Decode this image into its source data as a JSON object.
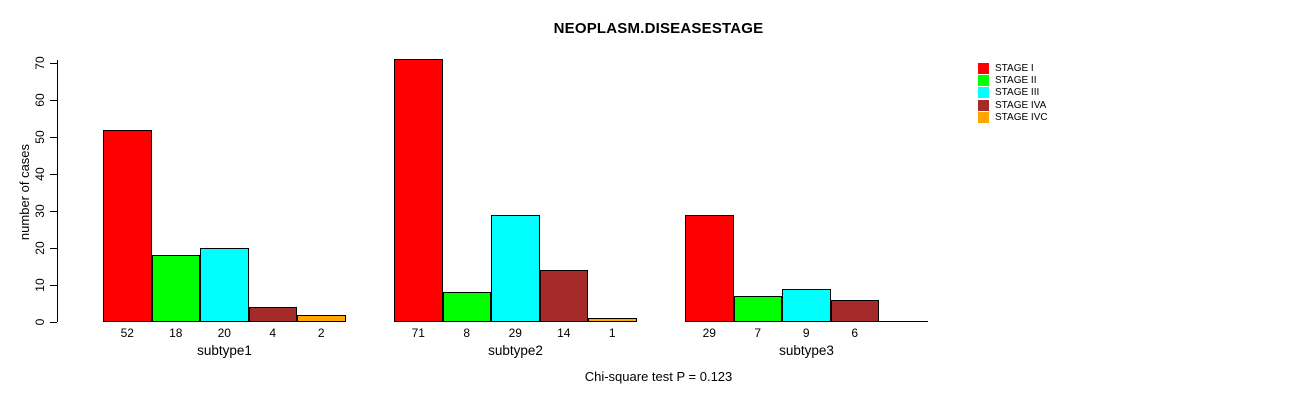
{
  "chart_data": {
    "type": "bar",
    "title": "NEOPLASM.DISEASESTAGE",
    "ylabel": "number of cases",
    "xlabel": "",
    "note": "Chi-square test P = 0.123",
    "categories": [
      "subtype1",
      "subtype2",
      "subtype3"
    ],
    "series": [
      {
        "name": "STAGE I",
        "color": "#FF0000",
        "values": [
          52,
          71,
          29
        ]
      },
      {
        "name": "STAGE II",
        "color": "#00FF00",
        "values": [
          18,
          8,
          7
        ]
      },
      {
        "name": "STAGE III",
        "color": "#00FFFF",
        "values": [
          20,
          29,
          9
        ]
      },
      {
        "name": "STAGE IVA",
        "color": "#A52A2A",
        "values": [
          4,
          14,
          6
        ]
      },
      {
        "name": "STAGE IVC",
        "color": "#FFA500",
        "values": [
          2,
          1,
          0
        ]
      }
    ],
    "ylim": [
      0,
      70
    ],
    "yticks": [
      0,
      10,
      20,
      30,
      40,
      50,
      60,
      70
    ],
    "legend_position": "right",
    "grid": false,
    "bar_value_labels": true,
    "hide_zero_value_labels": true
  }
}
